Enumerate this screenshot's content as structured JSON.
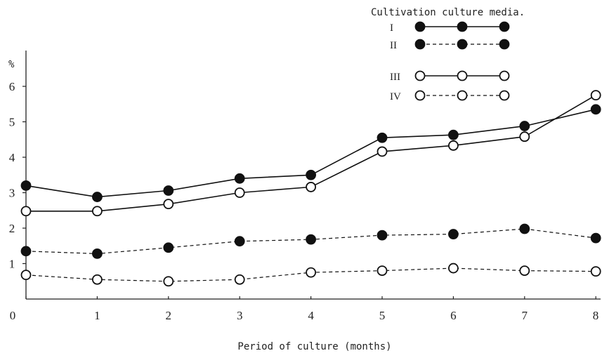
{
  "chart_data": {
    "type": "line",
    "title": "",
    "xlabel": "Period of culture (months)",
    "ylabel": "%",
    "x": [
      0,
      1,
      2,
      3,
      4,
      5,
      6,
      7,
      8
    ],
    "xlim": [
      0,
      8
    ],
    "ylim": [
      0,
      7
    ],
    "xticks": [
      "0",
      "1",
      "2",
      "3",
      "4",
      "5",
      "6",
      "7",
      "8"
    ],
    "yticks": [
      "1",
      "2",
      "3",
      "4",
      "5",
      "6"
    ],
    "grid": false,
    "legend": {
      "title": "Cultivation culture media.",
      "position": "top-right"
    },
    "series": [
      {
        "name": "I",
        "marker": "filled",
        "line": "solid",
        "values": [
          3.2,
          2.88,
          3.06,
          3.4,
          3.5,
          4.55,
          4.63,
          4.88,
          5.35
        ]
      },
      {
        "name": "II",
        "marker": "filled",
        "line": "dashed",
        "values": [
          1.35,
          1.28,
          1.45,
          1.63,
          1.68,
          1.8,
          1.83,
          1.98,
          1.72
        ]
      },
      {
        "name": "III",
        "marker": "open",
        "line": "solid",
        "values": [
          2.48,
          2.48,
          2.68,
          3.0,
          3.16,
          4.16,
          4.33,
          4.58,
          5.75
        ]
      },
      {
        "name": "IV",
        "marker": "open",
        "line": "dashed",
        "values": [
          0.68,
          0.55,
          0.5,
          0.55,
          0.75,
          0.8,
          0.87,
          0.8,
          0.78
        ]
      }
    ]
  }
}
